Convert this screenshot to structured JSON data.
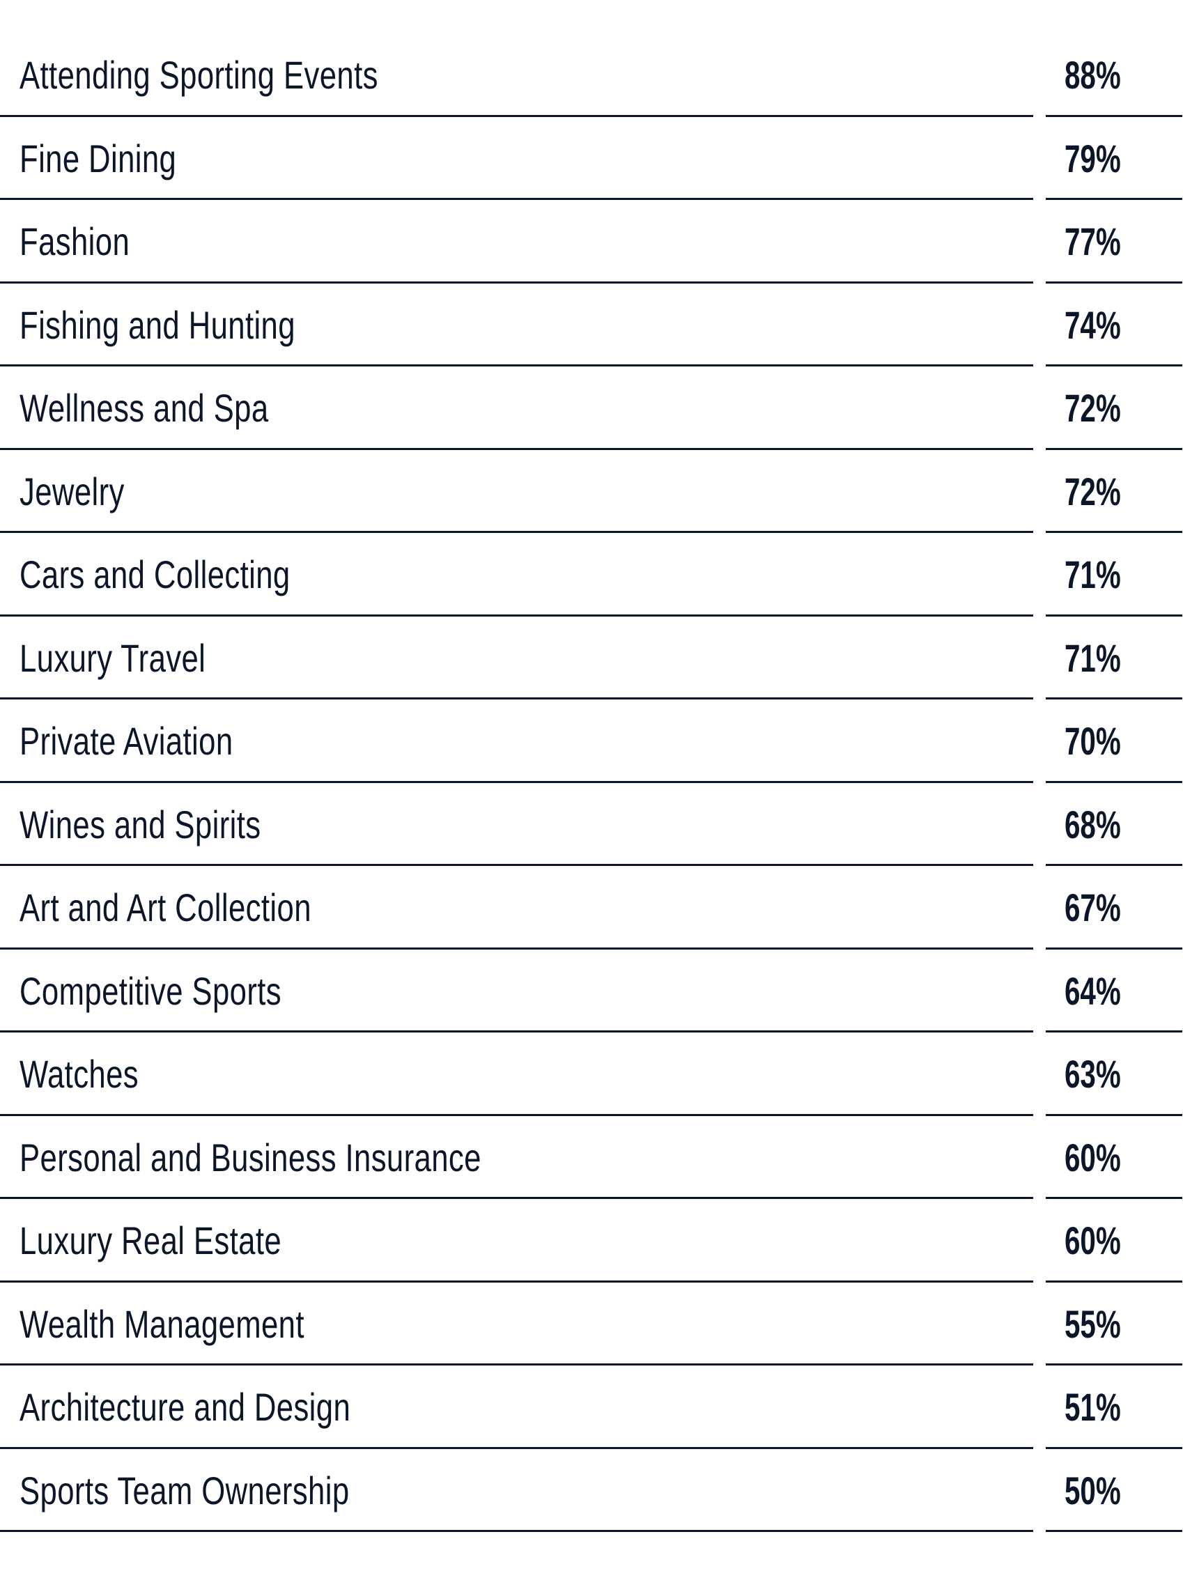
{
  "rows": [
    {
      "label": "Attending Sporting Events",
      "value": "88%"
    },
    {
      "label": "Fine Dining",
      "value": "79%"
    },
    {
      "label": "Fashion",
      "value": "77%"
    },
    {
      "label": "Fishing and Hunting",
      "value": "74%"
    },
    {
      "label": "Wellness and Spa",
      "value": "72%"
    },
    {
      "label": "Jewelry",
      "value": "72%"
    },
    {
      "label": "Cars and Collecting",
      "value": "71%"
    },
    {
      "label": "Luxury Travel",
      "value": "71%"
    },
    {
      "label": "Private Aviation",
      "value": "70%"
    },
    {
      "label": "Wines and Spirits",
      "value": "68%"
    },
    {
      "label": "Art and Art Collection",
      "value": "67%"
    },
    {
      "label": "Competitive Sports",
      "value": "64%"
    },
    {
      "label": "Watches",
      "value": "63%"
    },
    {
      "label": "Personal and Business Insurance",
      "value": "60%"
    },
    {
      "label": "Luxury Real Estate",
      "value": "60%"
    },
    {
      "label": "Wealth Management",
      "value": "55%"
    },
    {
      "label": "Architecture and Design",
      "value": "51%"
    },
    {
      "label": "Sports Team Ownership",
      "value": "50%"
    }
  ],
  "colors": {
    "text": "#0b1628",
    "rule": "#0b1628",
    "background": "#ffffff"
  }
}
